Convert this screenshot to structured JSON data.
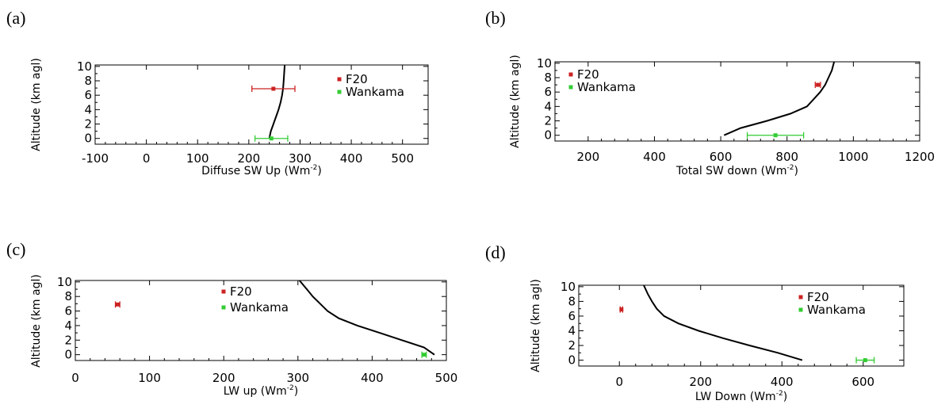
{
  "chart_data": [
    {
      "panel": "(a)",
      "type": "line",
      "xlabel": "Diffuse SW Up (Wm",
      "xlabel_sup": "-2",
      "xlabel_end": ")",
      "ylabel": "Altitude (km agl)",
      "xlim": [
        -100,
        550
      ],
      "ylim": [
        -0.8,
        10.2
      ],
      "xticks": [
        -100,
        0,
        100,
        200,
        300,
        400,
        500
      ],
      "yticks": [
        0,
        2,
        4,
        6,
        8,
        10
      ],
      "profile": {
        "x": [
          240,
          243,
          248,
          253,
          258,
          262,
          265,
          267,
          268,
          269,
          270
        ],
        "y": [
          0,
          1,
          2,
          3,
          4,
          5,
          6,
          7,
          8,
          9,
          10.2
        ]
      },
      "points": [
        {
          "name": "F20",
          "x": 248,
          "y": 6.9,
          "xerr": 42,
          "color": "#cc2222"
        },
        {
          "name": "Wankama",
          "x": 244,
          "y": 0,
          "xerr": 32,
          "color": "#33cc33"
        }
      ],
      "legend": [
        "F20",
        "Wankama"
      ]
    },
    {
      "panel": "(b)",
      "type": "line",
      "xlabel": "Total SW down (Wm",
      "xlabel_sup": "-2",
      "xlabel_end": ")",
      "ylabel": "Altitude (km agl)",
      "xlim": [
        100,
        1200
      ],
      "ylim": [
        -0.8,
        10.2
      ],
      "xticks": [
        200,
        400,
        600,
        800,
        1000,
        1200
      ],
      "yticks": [
        0,
        2,
        4,
        6,
        8,
        10
      ],
      "profile": {
        "x": [
          610,
          660,
          740,
          810,
          860,
          880,
          900,
          915,
          925,
          935,
          942
        ],
        "y": [
          0,
          1,
          2,
          3,
          4,
          5,
          6,
          7,
          8,
          9,
          10.2
        ]
      },
      "points": [
        {
          "name": "F20",
          "x": 893,
          "y": 7.0,
          "xerr": 8,
          "color": "#cc2222"
        },
        {
          "name": "Wankama",
          "x": 765,
          "y": 0,
          "xerr": 85,
          "color": "#33cc33"
        }
      ],
      "legend": [
        "F20",
        "Wankama"
      ]
    },
    {
      "panel": "(c)",
      "type": "line",
      "xlabel": "LW up (Wm",
      "xlabel_sup": "-2",
      "xlabel_end": ")",
      "ylabel": "Altitude (km agl)",
      "xlim": [
        0,
        500
      ],
      "ylim": [
        -0.8,
        10.2
      ],
      "xticks": [
        0,
        100,
        200,
        300,
        400,
        500
      ],
      "yticks": [
        0,
        2,
        4,
        6,
        8,
        10
      ],
      "profile": {
        "x": [
          484,
          470,
          440,
          410,
          380,
          355,
          340,
          330,
          320,
          312,
          302
        ],
        "y": [
          0,
          1,
          2,
          3,
          4,
          5,
          6,
          7,
          8,
          9,
          10.2
        ]
      },
      "points": [
        {
          "name": "F20",
          "x": 57,
          "y": 6.9,
          "xerr": 3,
          "color": "#cc2222"
        },
        {
          "name": "Wankama",
          "x": 470,
          "y": 0,
          "xerr": 3,
          "color": "#33cc33"
        }
      ],
      "legend": [
        "F20",
        "Wankama"
      ]
    },
    {
      "panel": "(d)",
      "type": "line",
      "xlabel": "LW Down (Wm",
      "xlabel_sup": "-2",
      "xlabel_end": ")",
      "ylabel": "Altitude (km agl)",
      "xlim": [
        -100,
        700
      ],
      "ylim": [
        -0.8,
        10.2
      ],
      "xticks": [
        0,
        200,
        400,
        600
      ],
      "yticks": [
        0,
        2,
        4,
        6,
        8,
        10
      ],
      "profile": {
        "x": [
          450,
          390,
          320,
          255,
          195,
          145,
          110,
          92,
          80,
          70,
          60
        ],
        "y": [
          0,
          1,
          2,
          3,
          4,
          5,
          6,
          7,
          8,
          9,
          10.2
        ]
      },
      "points": [
        {
          "name": "F20",
          "x": 5,
          "y": 6.9,
          "xerr": 3,
          "color": "#cc2222"
        },
        {
          "name": "Wankama",
          "x": 605,
          "y": 0,
          "xerr": 22,
          "color": "#33cc33"
        }
      ],
      "legend": [
        "F20",
        "Wankama"
      ]
    }
  ]
}
